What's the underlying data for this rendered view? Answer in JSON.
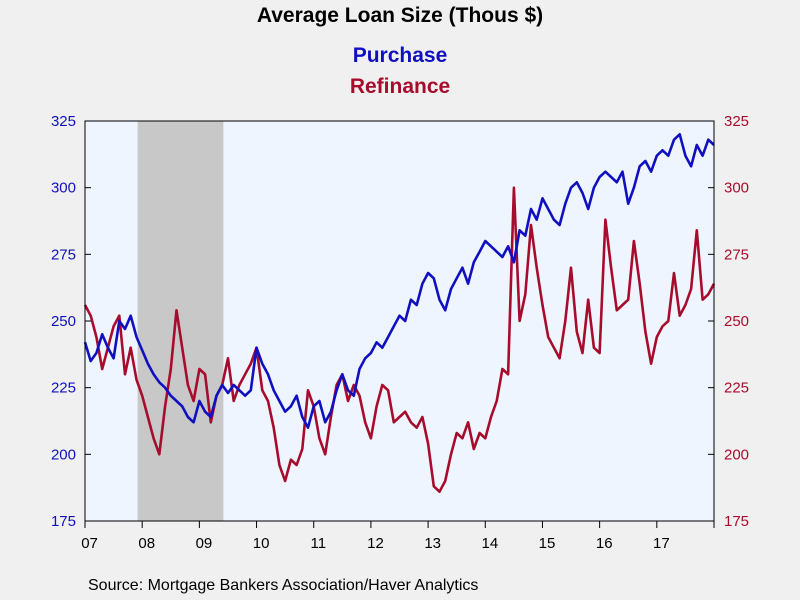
{
  "chart_data": {
    "type": "line",
    "title": "Average Loan Size (Thous $)",
    "source": "Source:  Mortgage Bankers Association/Haver Analytics",
    "x_ticks": [
      "07",
      "08",
      "09",
      "10",
      "11",
      "12",
      "13",
      "14",
      "15",
      "16",
      "17"
    ],
    "xlim": [
      2007.0,
      2018.0
    ],
    "ylim_left": [
      175,
      325
    ],
    "ylim_right": [
      175,
      325
    ],
    "y_ticks_left": [
      "325",
      "300",
      "275",
      "250",
      "225",
      "200",
      "175"
    ],
    "y_ticks_right": [
      "325",
      "300",
      "275",
      "250",
      "225",
      "200",
      "175"
    ],
    "grid": false,
    "recession": [
      2007.92,
      2009.42
    ],
    "colors": {
      "purchase": "#1010c0",
      "refinance": "#a80c2c",
      "plot_bg": "#eef5ff",
      "recession": "#c8c8c8"
    },
    "series": [
      {
        "name": "Purchase",
        "axis": "left",
        "x": [
          2007.0,
          2007.1,
          2007.2,
          2007.3,
          2007.4,
          2007.5,
          2007.6,
          2007.7,
          2007.8,
          2007.9,
          2008.0,
          2008.1,
          2008.2,
          2008.3,
          2008.4,
          2008.5,
          2008.6,
          2008.7,
          2008.8,
          2008.9,
          2009.0,
          2009.1,
          2009.2,
          2009.3,
          2009.4,
          2009.5,
          2009.6,
          2009.7,
          2009.8,
          2009.9,
          2010.0,
          2010.1,
          2010.2,
          2010.3,
          2010.4,
          2010.5,
          2010.6,
          2010.7,
          2010.8,
          2010.9,
          2011.0,
          2011.1,
          2011.2,
          2011.3,
          2011.4,
          2011.5,
          2011.6,
          2011.7,
          2011.8,
          2011.9,
          2012.0,
          2012.1,
          2012.2,
          2012.3,
          2012.4,
          2012.5,
          2012.6,
          2012.7,
          2012.8,
          2012.9,
          2013.0,
          2013.1,
          2013.2,
          2013.3,
          2013.4,
          2013.5,
          2013.6,
          2013.7,
          2013.8,
          2013.9,
          2014.0,
          2014.1,
          2014.2,
          2014.3,
          2014.4,
          2014.5,
          2014.6,
          2014.7,
          2014.8,
          2014.9,
          2015.0,
          2015.1,
          2015.2,
          2015.3,
          2015.4,
          2015.5,
          2015.6,
          2015.7,
          2015.8,
          2015.9,
          2016.0,
          2016.1,
          2016.2,
          2016.3,
          2016.4,
          2016.5,
          2016.6,
          2016.7,
          2016.8,
          2016.9,
          2017.0,
          2017.1,
          2017.2,
          2017.3,
          2017.4,
          2017.5,
          2017.6,
          2017.7,
          2017.8,
          2017.9,
          2018.0
        ],
        "values": [
          242,
          235,
          238,
          245,
          240,
          236,
          250,
          247,
          252,
          244,
          239,
          234,
          230,
          227,
          225,
          222,
          220,
          218,
          214,
          212,
          220,
          216,
          214,
          222,
          226,
          223,
          226,
          224,
          222,
          224,
          240,
          234,
          230,
          224,
          220,
          216,
          218,
          222,
          214,
          210,
          218,
          220,
          212,
          216,
          224,
          230,
          224,
          222,
          232,
          236,
          238,
          242,
          240,
          244,
          248,
          252,
          250,
          258,
          256,
          264,
          268,
          266,
          258,
          254,
          262,
          266,
          270,
          264,
          272,
          276,
          280,
          278,
          276,
          274,
          278,
          272,
          284,
          282,
          292,
          288,
          296,
          292,
          288,
          286,
          294,
          300,
          302,
          298,
          292,
          300,
          304,
          306,
          304,
          302,
          306,
          294,
          300,
          308,
          310,
          306,
          312,
          314,
          312,
          318,
          320,
          312,
          308,
          316,
          312,
          318,
          316
        ]
      },
      {
        "name": "Refinance",
        "axis": "right",
        "x": [
          2007.0,
          2007.1,
          2007.2,
          2007.3,
          2007.4,
          2007.5,
          2007.6,
          2007.7,
          2007.8,
          2007.9,
          2008.0,
          2008.1,
          2008.2,
          2008.3,
          2008.4,
          2008.5,
          2008.6,
          2008.7,
          2008.8,
          2008.9,
          2009.0,
          2009.1,
          2009.2,
          2009.3,
          2009.4,
          2009.5,
          2009.6,
          2009.7,
          2009.8,
          2009.9,
          2010.0,
          2010.1,
          2010.2,
          2010.3,
          2010.4,
          2010.5,
          2010.6,
          2010.7,
          2010.8,
          2010.9,
          2011.0,
          2011.1,
          2011.2,
          2011.3,
          2011.4,
          2011.5,
          2011.6,
          2011.7,
          2011.8,
          2011.9,
          2012.0,
          2012.1,
          2012.2,
          2012.3,
          2012.4,
          2012.5,
          2012.6,
          2012.7,
          2012.8,
          2012.9,
          2013.0,
          2013.1,
          2013.2,
          2013.3,
          2013.4,
          2013.5,
          2013.6,
          2013.7,
          2013.8,
          2013.9,
          2014.0,
          2014.1,
          2014.2,
          2014.3,
          2014.4,
          2014.5,
          2014.6,
          2014.7,
          2014.8,
          2014.9,
          2015.0,
          2015.1,
          2015.2,
          2015.3,
          2015.4,
          2015.5,
          2015.6,
          2015.7,
          2015.8,
          2015.9,
          2016.0,
          2016.1,
          2016.2,
          2016.3,
          2016.4,
          2016.5,
          2016.6,
          2016.7,
          2016.8,
          2016.9,
          2017.0,
          2017.1,
          2017.2,
          2017.3,
          2017.4,
          2017.5,
          2017.6,
          2017.7,
          2017.8,
          2017.9,
          2018.0
        ],
        "values": [
          256,
          252,
          244,
          232,
          240,
          248,
          252,
          230,
          240,
          228,
          222,
          214,
          206,
          200,
          218,
          232,
          254,
          240,
          226,
          220,
          232,
          230,
          212,
          222,
          226,
          236,
          220,
          226,
          230,
          234,
          240,
          224,
          220,
          210,
          196,
          190,
          198,
          196,
          202,
          224,
          218,
          206,
          200,
          214,
          226,
          230,
          220,
          226,
          222,
          212,
          206,
          218,
          226,
          224,
          212,
          214,
          216,
          212,
          210,
          214,
          204,
          188,
          186,
          190,
          200,
          208,
          206,
          212,
          202,
          208,
          206,
          214,
          220,
          232,
          230,
          300,
          250,
          260,
          286,
          270,
          256,
          244,
          240,
          236,
          250,
          270,
          246,
          238,
          258,
          240,
          238,
          288,
          270,
          254,
          256,
          258,
          280,
          264,
          246,
          234,
          244,
          248,
          250,
          268,
          252,
          256,
          262,
          284,
          258,
          260,
          264
        ]
      }
    ]
  }
}
